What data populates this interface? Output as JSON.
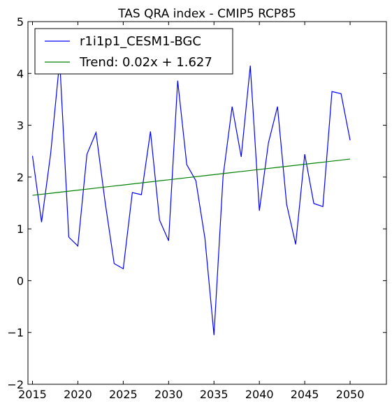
{
  "chart_data": {
    "type": "line",
    "title": "TAS QRA index - CMIP5 RCP85",
    "xlabel": "",
    "ylabel": "",
    "xlim": [
      2014.5,
      2054
    ],
    "ylim": [
      -2,
      5
    ],
    "xticks": [
      2015,
      2020,
      2025,
      2030,
      2035,
      2040,
      2045,
      2050
    ],
    "yticks": [
      -2,
      -1,
      0,
      1,
      2,
      3,
      4,
      5
    ],
    "grid": false,
    "legend": "top-left",
    "x": [
      2015,
      2016,
      2017,
      2018,
      2019,
      2020,
      2021,
      2022,
      2023,
      2024,
      2025,
      2026,
      2027,
      2028,
      2029,
      2030,
      2031,
      2032,
      2033,
      2034,
      2035,
      2036,
      2037,
      2038,
      2039,
      2040,
      2041,
      2042,
      2043,
      2044,
      2045,
      2046,
      2047,
      2048,
      2049,
      2050
    ],
    "series": [
      {
        "name": "r1i1p1_CESM1-BGC",
        "color": "#0000ff",
        "values": [
          2.41,
          1.13,
          2.45,
          4.25,
          0.84,
          0.67,
          2.44,
          2.86,
          1.52,
          0.33,
          0.23,
          1.7,
          1.66,
          2.88,
          1.17,
          0.77,
          3.86,
          2.24,
          1.93,
          0.82,
          -1.05,
          2.01,
          3.36,
          2.39,
          4.15,
          1.35,
          2.66,
          3.36,
          1.48,
          0.7,
          2.44,
          1.49,
          1.43,
          3.65,
          3.61,
          2.71
        ]
      },
      {
        "name": "Trend: 0.02x + 1.627",
        "color": "#008000",
        "values": [
          1.647,
          1.667,
          1.687,
          1.707,
          1.727,
          1.747,
          1.767,
          1.787,
          1.807,
          1.827,
          1.847,
          1.867,
          1.887,
          1.907,
          1.927,
          1.947,
          1.967,
          1.987,
          2.007,
          2.027,
          2.047,
          2.067,
          2.087,
          2.107,
          2.127,
          2.147,
          2.167,
          2.187,
          2.207,
          2.227,
          2.247,
          2.267,
          2.287,
          2.307,
          2.327,
          2.347
        ]
      }
    ]
  }
}
